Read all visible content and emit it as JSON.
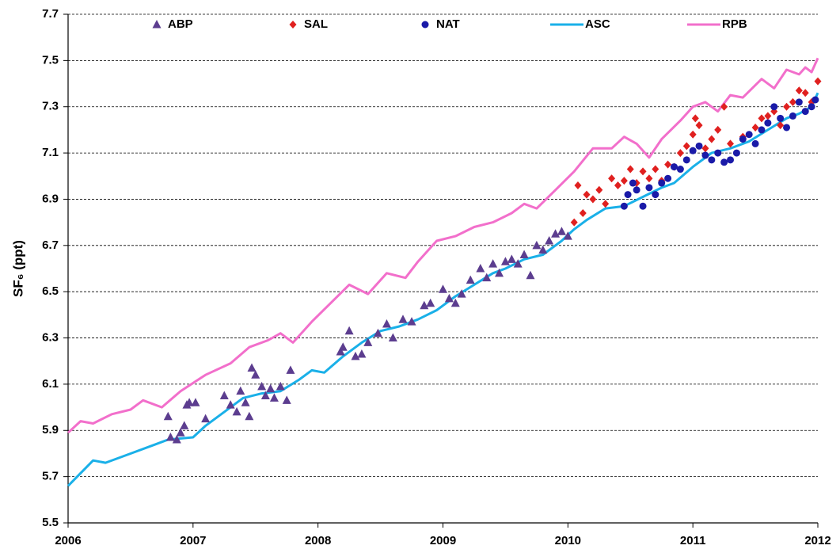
{
  "chart_data": {
    "type": "scatter",
    "y_label": "SF₆ (ppt)",
    "xlim": [
      2006,
      2012
    ],
    "xticks": [
      2006,
      2007,
      2008,
      2009,
      2010,
      2011,
      2012
    ],
    "ylim": [
      5.5,
      7.7
    ],
    "yticks": [
      5.5,
      5.7,
      5.9,
      6.1,
      6.3,
      6.5,
      6.7,
      6.9,
      7.1,
      7.3,
      7.5,
      7.7
    ],
    "grid": true,
    "legend": "top",
    "series": [
      {
        "name": "ABP",
        "color": "#5c3d8f",
        "marker": "triangle",
        "x": [
          2006.8,
          2006.82,
          2006.87,
          2006.9,
          2006.93,
          2006.95,
          2006.97,
          2007.02,
          2007.1,
          2007.25,
          2007.3,
          2007.35,
          2007.38,
          2007.42,
          2007.45,
          2007.47,
          2007.5,
          2007.55,
          2007.58,
          2007.62,
          2007.65,
          2007.7,
          2007.75,
          2007.78,
          2008.18,
          2008.2,
          2008.25,
          2008.3,
          2008.35,
          2008.4,
          2008.48,
          2008.55,
          2008.6,
          2008.68,
          2008.75,
          2008.85,
          2008.9,
          2009.0,
          2009.05,
          2009.1,
          2009.15,
          2009.22,
          2009.3,
          2009.35,
          2009.4,
          2009.45,
          2009.5,
          2009.55,
          2009.6,
          2009.65,
          2009.7,
          2009.75,
          2009.8,
          2009.85,
          2009.9,
          2009.95,
          2010.0
        ],
        "values": [
          5.96,
          5.87,
          5.86,
          5.89,
          5.92,
          6.01,
          6.02,
          6.02,
          5.95,
          6.05,
          6.01,
          5.98,
          6.07,
          6.02,
          5.96,
          6.17,
          6.14,
          6.09,
          6.05,
          6.08,
          6.04,
          6.09,
          6.03,
          6.16,
          6.24,
          6.26,
          6.33,
          6.22,
          6.23,
          6.28,
          6.32,
          6.36,
          6.3,
          6.38,
          6.37,
          6.44,
          6.45,
          6.51,
          6.47,
          6.45,
          6.49,
          6.55,
          6.6,
          6.56,
          6.62,
          6.58,
          6.63,
          6.64,
          6.62,
          6.66,
          6.57,
          6.7,
          6.68,
          6.72,
          6.75,
          6.76,
          6.74
        ]
      },
      {
        "name": "SAL",
        "color": "#e0201f",
        "marker": "diamond",
        "x": [
          2010.05,
          2010.08,
          2010.12,
          2010.15,
          2010.2,
          2010.25,
          2010.3,
          2010.35,
          2010.4,
          2010.45,
          2010.5,
          2010.55,
          2010.6,
          2010.65,
          2010.7,
          2010.75,
          2010.8,
          2010.85,
          2010.9,
          2010.95,
          2011.0,
          2011.02,
          2011.05,
          2011.1,
          2011.15,
          2011.2,
          2011.25,
          2011.3,
          2011.4,
          2011.5,
          2011.55,
          2011.6,
          2011.65,
          2011.7,
          2011.75,
          2011.8,
          2011.85,
          2011.9,
          2011.95,
          2012.0
        ],
        "values": [
          6.8,
          6.96,
          6.84,
          6.92,
          6.9,
          6.94,
          6.88,
          6.99,
          6.96,
          6.98,
          7.03,
          6.97,
          7.02,
          6.99,
          7.03,
          6.98,
          7.05,
          7.04,
          7.1,
          7.13,
          7.18,
          7.25,
          7.22,
          7.12,
          7.16,
          7.2,
          7.3,
          7.14,
          7.17,
          7.21,
          7.25,
          7.26,
          7.28,
          7.22,
          7.3,
          7.32,
          7.37,
          7.36,
          7.32,
          7.41
        ]
      },
      {
        "name": "NAT",
        "color": "#1a1aa8",
        "marker": "circle",
        "x": [
          2010.45,
          2010.48,
          2010.52,
          2010.55,
          2010.6,
          2010.65,
          2010.7,
          2010.75,
          2010.8,
          2010.85,
          2010.9,
          2010.95,
          2011.0,
          2011.05,
          2011.1,
          2011.15,
          2011.2,
          2011.25,
          2011.3,
          2011.35,
          2011.4,
          2011.45,
          2011.5,
          2011.55,
          2011.6,
          2011.65,
          2011.7,
          2011.75,
          2011.8,
          2011.85,
          2011.9,
          2011.95,
          2011.98
        ],
        "values": [
          6.87,
          6.92,
          6.97,
          6.94,
          6.87,
          6.95,
          6.92,
          6.97,
          6.99,
          7.04,
          7.03,
          7.07,
          7.11,
          7.13,
          7.09,
          7.07,
          7.1,
          7.06,
          7.07,
          7.1,
          7.16,
          7.18,
          7.14,
          7.2,
          7.23,
          7.3,
          7.25,
          7.21,
          7.26,
          7.32,
          7.28,
          7.3,
          7.33
        ]
      },
      {
        "name": "ASC",
        "color": "#1ab0e8",
        "marker": "line",
        "x": [
          2006,
          2006.2,
          2006.3,
          2006.5,
          2006.7,
          2006.8,
          2007.0,
          2007.1,
          2007.25,
          2007.4,
          2007.55,
          2007.7,
          2007.85,
          2007.95,
          2008.05,
          2008.2,
          2008.35,
          2008.5,
          2008.65,
          2008.8,
          2008.95,
          2009.1,
          2009.25,
          2009.4,
          2009.5,
          2009.65,
          2009.8,
          2009.95,
          2010.05,
          2010.15,
          2010.3,
          2010.45,
          2010.6,
          2010.75,
          2010.85,
          2011.0,
          2011.15,
          2011.3,
          2011.45,
          2011.6,
          2011.75,
          2011.85,
          2011.95,
          2012.0
        ],
        "values": [
          5.66,
          5.77,
          5.76,
          5.8,
          5.84,
          5.86,
          5.87,
          5.92,
          5.98,
          6.04,
          6.06,
          6.07,
          6.12,
          6.16,
          6.15,
          6.22,
          6.28,
          6.33,
          6.35,
          6.38,
          6.42,
          6.48,
          6.53,
          6.58,
          6.6,
          6.64,
          6.66,
          6.72,
          6.77,
          6.81,
          6.86,
          6.87,
          6.91,
          6.95,
          6.97,
          7.04,
          7.1,
          7.12,
          7.15,
          7.2,
          7.25,
          7.27,
          7.3,
          7.36
        ]
      },
      {
        "name": "RPB",
        "color": "#f26fcb",
        "marker": "line",
        "x": [
          2006,
          2006.1,
          2006.2,
          2006.35,
          2006.5,
          2006.6,
          2006.75,
          2006.9,
          2007.1,
          2007.3,
          2007.45,
          2007.6,
          2007.7,
          2007.8,
          2007.95,
          2008.1,
          2008.25,
          2008.4,
          2008.55,
          2008.7,
          2008.8,
          2008.95,
          2009.1,
          2009.25,
          2009.4,
          2009.55,
          2009.65,
          2009.75,
          2009.9,
          2010.05,
          2010.2,
          2010.35,
          2010.45,
          2010.55,
          2010.65,
          2010.75,
          2010.9,
          2011.0,
          2011.1,
          2011.2,
          2011.3,
          2011.4,
          2011.55,
          2011.65,
          2011.75,
          2011.85,
          2011.9,
          2011.95,
          2012.0
        ],
        "values": [
          5.89,
          5.94,
          5.93,
          5.97,
          5.99,
          6.03,
          6.0,
          6.07,
          6.14,
          6.19,
          6.26,
          6.29,
          6.32,
          6.28,
          6.37,
          6.45,
          6.53,
          6.49,
          6.58,
          6.56,
          6.63,
          6.72,
          6.74,
          6.78,
          6.8,
          6.84,
          6.88,
          6.86,
          6.94,
          7.02,
          7.12,
          7.12,
          7.17,
          7.14,
          7.08,
          7.16,
          7.24,
          7.3,
          7.32,
          7.28,
          7.35,
          7.34,
          7.42,
          7.38,
          7.46,
          7.44,
          7.47,
          7.45,
          7.51
        ]
      }
    ]
  }
}
